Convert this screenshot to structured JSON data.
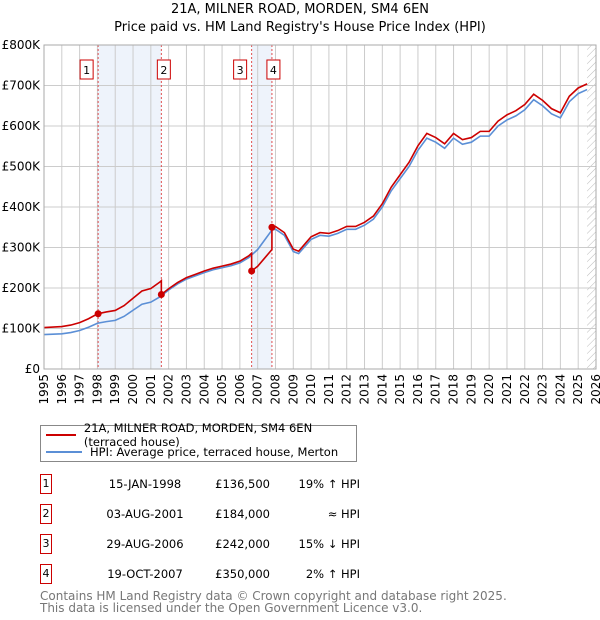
{
  "title": "21A, MILNER ROAD, MORDEN, SM4 6EN",
  "subtitle": "Price paid vs. HM Land Registry's House Price Index (HPI)",
  "colors": {
    "property": "#cc0000",
    "hpi": "#5b8fd6",
    "shade": "#eef3fb",
    "grid": "#cccccc"
  },
  "chart_data": {
    "type": "line",
    "title": "21A, MILNER ROAD, MORDEN, SM4 6EN",
    "xlim": [
      1995,
      2026
    ],
    "ylim": [
      0,
      800000
    ],
    "x_ticks": [
      "1995",
      "1996",
      "1997",
      "1998",
      "1999",
      "2000",
      "2001",
      "2002",
      "2003",
      "2004",
      "2005",
      "2006",
      "2007",
      "2008",
      "2009",
      "2010",
      "2011",
      "2012",
      "2013",
      "2014",
      "2015",
      "2016",
      "2017",
      "2018",
      "2019",
      "2020",
      "2021",
      "2022",
      "2023",
      "2024",
      "2025",
      "2026"
    ],
    "y_ticks": [
      {
        "v": 0,
        "label": "£0"
      },
      {
        "v": 100000,
        "label": "£100K"
      },
      {
        "v": 200000,
        "label": "£200K"
      },
      {
        "v": 300000,
        "label": "£300K"
      },
      {
        "v": 400000,
        "label": "£400K"
      },
      {
        "v": 500000,
        "label": "£500K"
      },
      {
        "v": 600000,
        "label": "£600K"
      },
      {
        "v": 700000,
        "label": "£700K"
      },
      {
        "v": 800000,
        "label": "£800K"
      }
    ],
    "forecast_from": 2025.5,
    "hpi_series": {
      "name": "HPI: Average price, terraced house, Merton",
      "x": [
        1995,
        1995.5,
        1996,
        1996.5,
        1997,
        1997.5,
        1998,
        1998.5,
        1999,
        1999.5,
        2000,
        2000.5,
        2001,
        2001.5,
        2002,
        2002.5,
        2003,
        2003.5,
        2004,
        2004.5,
        2005,
        2005.5,
        2006,
        2006.5,
        2007,
        2007.5,
        2007.8,
        2008,
        2008.5,
        2009,
        2009.3,
        2009.7,
        2010,
        2010.5,
        2011,
        2011.5,
        2012,
        2012.5,
        2013,
        2013.5,
        2014,
        2014.5,
        2015,
        2015.5,
        2016,
        2016.5,
        2017,
        2017.5,
        2018,
        2018.5,
        2019,
        2019.5,
        2020,
        2020.5,
        2021,
        2021.5,
        2022,
        2022.5,
        2023,
        2023.5,
        2024,
        2024.5,
        2025,
        2025.5
      ],
      "y": [
        85000,
        86000,
        87000,
        90000,
        95000,
        103000,
        113000,
        117000,
        120000,
        130000,
        145000,
        160000,
        165000,
        178000,
        195000,
        210000,
        222000,
        230000,
        238000,
        245000,
        250000,
        255000,
        262000,
        275000,
        295000,
        325000,
        343000,
        345000,
        330000,
        290000,
        285000,
        305000,
        320000,
        330000,
        328000,
        335000,
        345000,
        345000,
        355000,
        370000,
        400000,
        440000,
        470000,
        500000,
        540000,
        570000,
        560000,
        545000,
        570000,
        555000,
        560000,
        575000,
        575000,
        600000,
        615000,
        625000,
        640000,
        665000,
        650000,
        630000,
        620000,
        660000,
        680000,
        690000
      ]
    },
    "property_series_name": "21A, MILNER ROAD, MORDEN, SM4 6EN (terraced house)",
    "sales": [
      {
        "n": "1",
        "x": 1998.04,
        "date": "15-JAN-1998",
        "price": 136500,
        "price_label": "£136,500",
        "hpi_label": "19% ↑ HPI"
      },
      {
        "n": "2",
        "x": 2001.59,
        "date": "03-AUG-2001",
        "price": 184000,
        "price_label": "£184,000",
        "hpi_label": "≈ HPI"
      },
      {
        "n": "3",
        "x": 2006.66,
        "date": "29-AUG-2006",
        "price": 242000,
        "price_label": "£242,000",
        "hpi_label": "15% ↓ HPI"
      },
      {
        "n": "4",
        "x": 2007.8,
        "date": "19-OCT-2007",
        "price": 350000,
        "price_label": "£350,000",
        "hpi_label": "2% ↑ HPI"
      }
    ]
  },
  "legend": {
    "property": "21A, MILNER ROAD, MORDEN, SM4 6EN (terraced house)",
    "hpi": "HPI: Average price, terraced house, Merton"
  },
  "footer": {
    "line1": "Contains HM Land Registry data © Crown copyright and database right 2025.",
    "line2": "This data is licensed under the Open Government Licence v3.0."
  }
}
